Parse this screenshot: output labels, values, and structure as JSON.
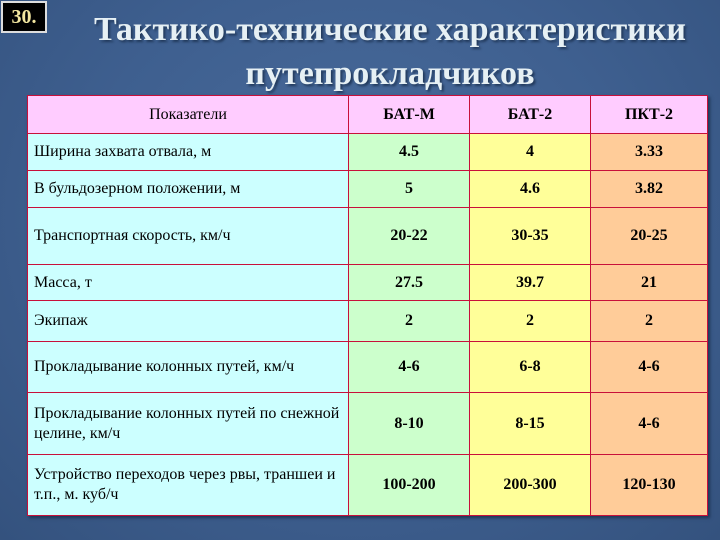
{
  "slide_number": "30.",
  "title": [
    "Тактико-технические характеристики",
    "путепрокладчиков"
  ],
  "colors": {
    "background": "#3e5f8f",
    "header": "#ffccff",
    "param_col": "#ccffff",
    "bat_m": "#ccffcc",
    "bat_2": "#ffff99",
    "pkt_2": "#ffcc99",
    "border": "#c8103a"
  },
  "table": {
    "headers": [
      "Показатели",
      "БАТ-М",
      "БАТ-2",
      "ПКТ-2"
    ],
    "rows": [
      [
        "Ширина захвата отвала, м",
        "4.5",
        "4",
        "3.33"
      ],
      [
        "В бульдозерном положении, м",
        "5",
        "4.6",
        "3.82"
      ],
      [
        "Транспортная скорость, км/ч",
        "20-22",
        "30-35",
        "20-25"
      ],
      [
        "Масса, т",
        "27.5",
        "39.7",
        "21"
      ],
      [
        "Экипаж",
        "2",
        "2",
        "2"
      ],
      [
        "Прокладывание колонных путей, км/ч",
        "4-6",
        "6-8",
        "4-6"
      ],
      [
        "Прокладывание колонных путей по снежной целине, км/ч",
        "8-10",
        "8-15",
        "4-6"
      ],
      [
        "Устройство  переходов через  рвы, траншеи и т.п., м. куб/ч",
        "100-200",
        "200-300",
        "120-130"
      ]
    ]
  }
}
